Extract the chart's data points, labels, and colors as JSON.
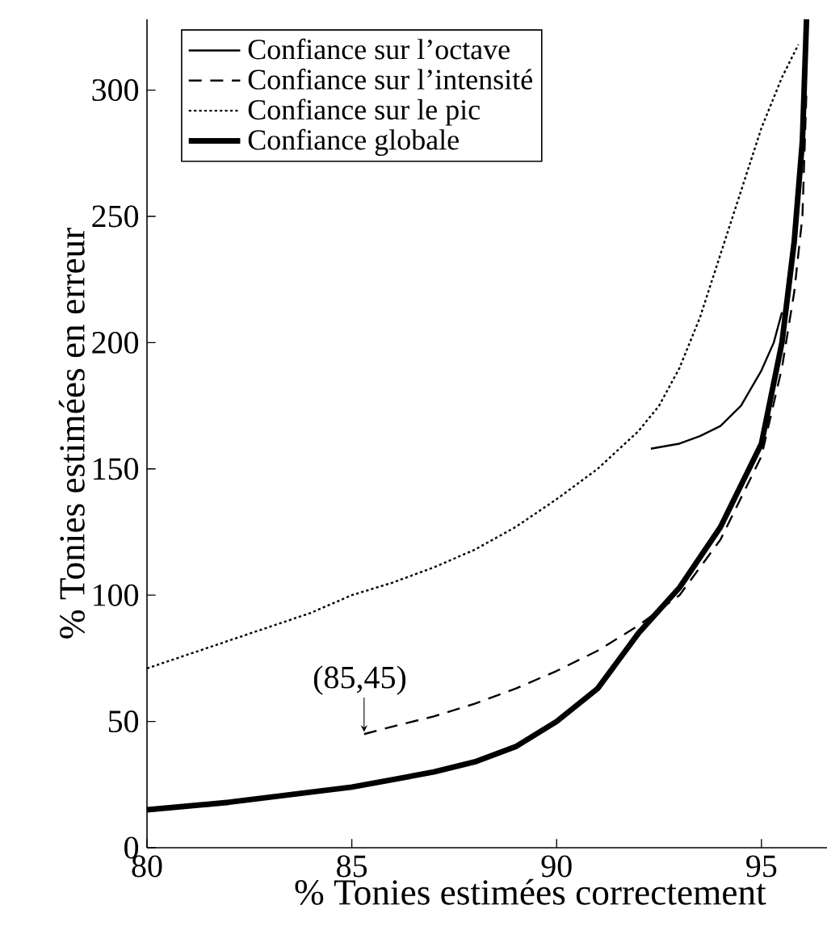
{
  "chart_data": {
    "type": "line",
    "xlabel": "% Tonies estimées correctement",
    "ylabel": "% Tonies estimées en erreur",
    "xlim": [
      80,
      96.6
    ],
    "ylim": [
      0,
      328
    ],
    "xticks": [
      80,
      85,
      90,
      95
    ],
    "yticks": [
      0,
      50,
      100,
      150,
      200,
      250,
      300
    ],
    "legend": "top left",
    "grid": false,
    "series": [
      {
        "name": "Confiance sur l’octave",
        "color": "#000000",
        "line_style": "solid",
        "x": [
          92.3,
          93,
          93.5,
          94,
          94.5,
          95,
          95.3,
          95.5
        ],
        "values": [
          158,
          160,
          163,
          167,
          175,
          189,
          200,
          212
        ]
      },
      {
        "name": "Confiance sur l’intensité",
        "color": "#000000",
        "line_style": "dashed",
        "x": [
          85.3,
          86,
          87,
          88,
          89,
          90,
          91,
          92,
          93,
          94,
          95,
          95.5,
          95.8,
          96,
          96.1
        ],
        "values": [
          45,
          48,
          52,
          57,
          63,
          70,
          78,
          88,
          100,
          122,
          155,
          190,
          220,
          250,
          300
        ]
      },
      {
        "name": "Confiance sur le pic",
        "color": "#000000",
        "line_style": "dotted",
        "x": [
          80,
          82,
          84,
          85,
          86,
          87,
          88,
          89,
          90,
          91,
          92,
          92.5,
          93,
          93.5,
          94,
          94.5,
          95,
          95.5,
          95.9
        ],
        "values": [
          71,
          82,
          93,
          100,
          105,
          111,
          118,
          127,
          138,
          150,
          165,
          175,
          190,
          210,
          235,
          260,
          285,
          305,
          318
        ]
      },
      {
        "name": "Confiance globale",
        "color": "#000000",
        "line_style": "solid",
        "x": [
          80,
          82,
          84,
          85,
          86,
          87,
          88,
          89,
          90,
          91,
          92,
          93,
          94,
          95,
          95.5,
          95.8,
          96,
          96.1
        ],
        "values": [
          15,
          18,
          22,
          24,
          27,
          30,
          34,
          40,
          50,
          63,
          85,
          103,
          127,
          160,
          200,
          240,
          280,
          328
        ]
      }
    ],
    "annotations": [
      {
        "text": "(85,45)",
        "x": 85.3,
        "y": 45
      }
    ]
  }
}
